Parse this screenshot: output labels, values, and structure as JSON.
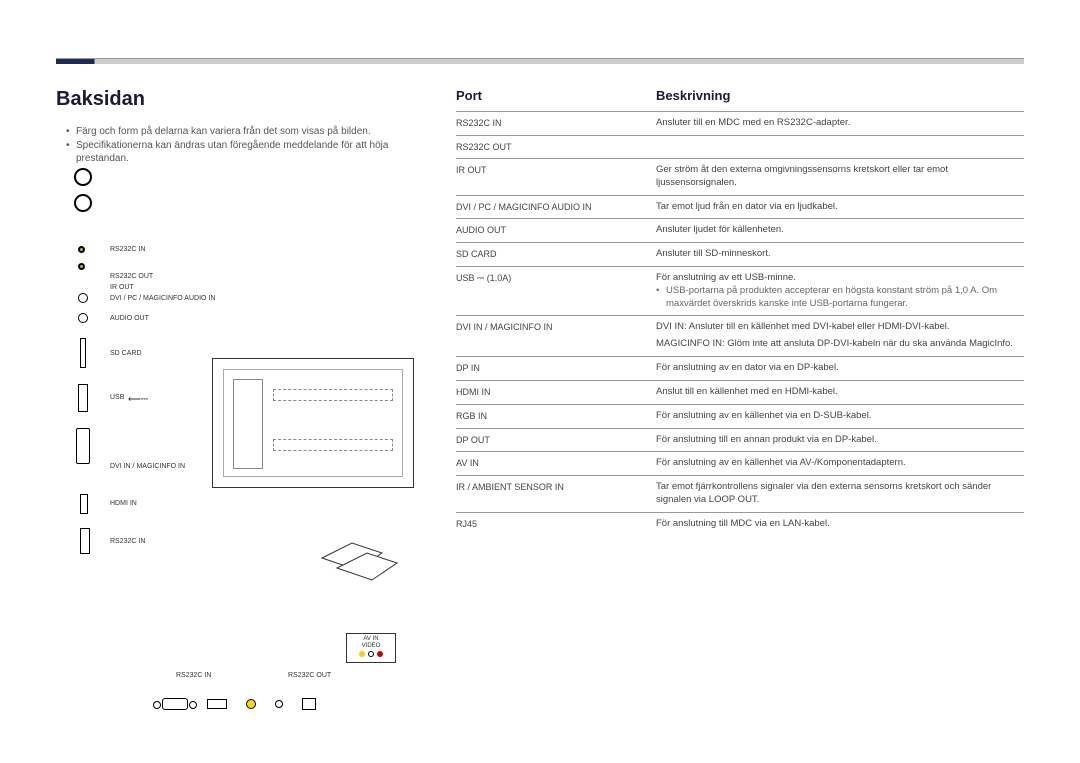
{
  "page": {
    "title": "Baksidan",
    "notes": [
      "Färg och form på delarna kan variera från det som visas på bilden.",
      "Specifikationerna kan ändras utan föregående meddelande för att höja prestandan."
    ]
  },
  "port_legend": {
    "items": [
      "RS232C IN",
      "RS232C OUT",
      "IR OUT",
      "DVI / PC / MAGICINFO AUDIO IN",
      "AUDIO OUT",
      "SD CARD",
      "USB",
      "DVI IN / MAGICINFO IN",
      "HDMI IN",
      "RS232C IN",
      "RS232C OUT"
    ]
  },
  "av_label": "AV IN\nVIDEO",
  "table": {
    "header": {
      "port": "Port",
      "desc": "Beskrivning"
    },
    "rows": [
      {
        "port": "RS232C IN",
        "desc": "Ansluter till en MDC med en RS232C-adapter."
      },
      {
        "port": "RS232C OUT",
        "desc": ""
      },
      {
        "port": "IR OUT",
        "desc": "Ger ström åt den externa omgivningssensorns kretskort eller tar emot ljussensorsignalen."
      },
      {
        "port": "DVI / PC / MAGICINFO AUDIO IN",
        "desc": "Tar emot ljud från en dator via en ljudkabel."
      },
      {
        "port": "AUDIO OUT",
        "desc": "Ansluter ljudet för källenheten."
      },
      {
        "port": "SD CARD",
        "desc": "Ansluter till SD-minneskort."
      },
      {
        "port": "USB ⎓ (1.0A)",
        "desc": "För anslutning av ett USB-minne.",
        "sub": "USB-portarna på produkten accepterar en högsta konstant ström på 1,0 A. Om maxvärdet överskrids kanske inte USB-portarna fungerar."
      },
      {
        "port": "DVI IN / MAGICINFO IN",
        "desc": "DVI IN: Ansluter till en källenhet med DVI-kabel eller HDMI-DVI-kabel.",
        "sub2": "MAGICINFO IN: Glöm inte att ansluta DP-DVI-kabeln när du ska använda MagicInfo."
      },
      {
        "port": "DP IN",
        "desc": "För anslutning av en dator via en DP-kabel."
      },
      {
        "port": "HDMI IN",
        "desc": "Anslut till en källenhet med en HDMI-kabel."
      },
      {
        "port": "RGB IN",
        "desc": "För anslutning av en källenhet via en D-SUB-kabel."
      },
      {
        "port": "DP OUT",
        "desc": "För anslutning till en annan produkt via en DP-kabel."
      },
      {
        "port": "AV IN",
        "desc": "För anslutning av en källenhet via AV-/Komponentadaptern."
      },
      {
        "port": "IR / AMBIENT SENSOR IN",
        "desc": "Tar emot fjärrkontrollens signaler via den externa sensorns kretskort och sänder signalen via LOOP OUT."
      },
      {
        "port": "RJ45",
        "desc": "För anslutning till MDC via en LAN-kabel."
      }
    ]
  },
  "colors": {
    "accent": "#1a2a5a",
    "text": "#444",
    "border": "#999"
  }
}
